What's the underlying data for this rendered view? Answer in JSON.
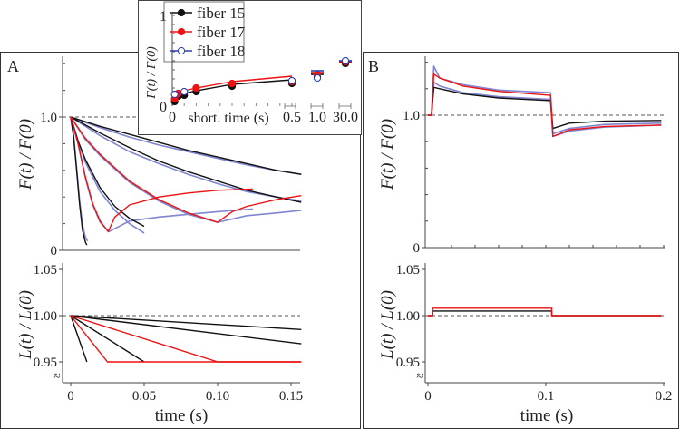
{
  "panels": {
    "a": "A",
    "b": "B"
  },
  "axes": {
    "f_label": "F(t) / F(0)",
    "l_label": "L(t) / L(0)",
    "time_label": "time (s)",
    "inset_x_label": "short. time (s)"
  },
  "colors": {
    "black": "#111111",
    "red": "#ee1111",
    "blue_trace": "#7f86d0",
    "blue_marker": "#2c3fb0",
    "dashed": "#555555"
  },
  "chart_data": [
    {
      "id": "A_force",
      "type": "line",
      "ylabel": "F(t) / F(0)",
      "xlim": [
        0,
        0.157
      ],
      "ylim": [
        0,
        1.45
      ],
      "yticks": [
        {
          "v": 0,
          "label": "0"
        },
        {
          "v": 1.0,
          "label": "1.0"
        }
      ],
      "reference_line": 1.0,
      "series": [
        {
          "color": "blue",
          "points": [
            [
              0,
              1
            ],
            [
              0.02,
              0.92
            ],
            [
              0.04,
              0.85
            ],
            [
              0.06,
              0.79
            ],
            [
              0.08,
              0.74
            ],
            [
              0.1,
              0.69
            ],
            [
              0.12,
              0.64
            ],
            [
              0.14,
              0.6
            ],
            [
              0.157,
              0.57
            ]
          ]
        },
        {
          "color": "blue",
          "points": [
            [
              0,
              1
            ],
            [
              0.02,
              0.86
            ],
            [
              0.04,
              0.74
            ],
            [
              0.06,
              0.65
            ],
            [
              0.08,
              0.57
            ],
            [
              0.1,
              0.5
            ],
            [
              0.12,
              0.44
            ],
            [
              0.14,
              0.4
            ],
            [
              0.157,
              0.37
            ]
          ]
        },
        {
          "color": "blue",
          "points": [
            [
              0,
              1
            ],
            [
              0.01,
              0.83
            ],
            [
              0.02,
              0.71
            ],
            [
              0.04,
              0.51
            ],
            [
              0.06,
              0.37
            ],
            [
              0.08,
              0.27
            ],
            [
              0.1,
              0.21
            ],
            [
              0.12,
              0.26
            ],
            [
              0.14,
              0.28
            ],
            [
              0.157,
              0.3
            ]
          ]
        },
        {
          "color": "blue",
          "points": [
            [
              0,
              1
            ],
            [
              0.005,
              0.82
            ],
            [
              0.01,
              0.66
            ],
            [
              0.02,
              0.44
            ],
            [
              0.03,
              0.3
            ],
            [
              0.04,
              0.2
            ],
            [
              0.05,
              0.13
            ]
          ]
        },
        {
          "color": "blue",
          "points": [
            [
              0,
              1
            ],
            [
              0.005,
              0.8
            ],
            [
              0.01,
              0.54
            ],
            [
              0.015,
              0.34
            ],
            [
              0.02,
              0.21
            ],
            [
              0.026,
              0.14
            ],
            [
              0.04,
              0.22
            ],
            [
              0.06,
              0.25
            ],
            [
              0.08,
              0.27
            ],
            [
              0.1,
              0.29
            ],
            [
              0.124,
              0.31
            ]
          ]
        },
        {
          "color": "blue",
          "points": [
            [
              0,
              1
            ],
            [
              0.002,
              0.86
            ],
            [
              0.004,
              0.62
            ],
            [
              0.006,
              0.38
            ],
            [
              0.008,
              0.19
            ],
            [
              0.01,
              0.1
            ],
            [
              0.0115,
              0.07
            ]
          ]
        },
        {
          "color": "black",
          "points": [
            [
              0,
              1
            ],
            [
              0.02,
              0.93
            ],
            [
              0.04,
              0.87
            ],
            [
              0.06,
              0.81
            ],
            [
              0.08,
              0.75
            ],
            [
              0.1,
              0.7
            ],
            [
              0.12,
              0.65
            ],
            [
              0.14,
              0.6
            ],
            [
              0.157,
              0.57
            ]
          ]
        },
        {
          "color": "black",
          "points": [
            [
              0,
              1
            ],
            [
              0.02,
              0.88
            ],
            [
              0.04,
              0.77
            ],
            [
              0.06,
              0.67
            ],
            [
              0.08,
              0.59
            ],
            [
              0.1,
              0.52
            ],
            [
              0.12,
              0.45
            ],
            [
              0.14,
              0.4
            ],
            [
              0.157,
              0.36
            ]
          ]
        },
        {
          "color": "black",
          "points": [
            [
              0,
              1
            ],
            [
              0.005,
              0.82
            ],
            [
              0.01,
              0.68
            ],
            [
              0.02,
              0.47
            ],
            [
              0.03,
              0.33
            ],
            [
              0.04,
              0.24
            ],
            [
              0.05,
              0.18
            ]
          ]
        },
        {
          "color": "black",
          "points": [
            [
              0,
              1
            ],
            [
              0.002,
              0.85
            ],
            [
              0.004,
              0.6
            ],
            [
              0.006,
              0.35
            ],
            [
              0.008,
              0.15
            ],
            [
              0.01,
              0.06
            ],
            [
              0.011,
              0.04
            ]
          ]
        },
        {
          "color": "red",
          "points": [
            [
              0,
              1
            ],
            [
              0.005,
              0.8
            ],
            [
              0.01,
              0.55
            ],
            [
              0.015,
              0.35
            ],
            [
              0.02,
              0.22
            ],
            [
              0.0255,
              0.14
            ],
            [
              0.03,
              0.25
            ],
            [
              0.04,
              0.34
            ],
            [
              0.06,
              0.4
            ],
            [
              0.08,
              0.43
            ],
            [
              0.1,
              0.45
            ],
            [
              0.124,
              0.46
            ]
          ]
        },
        {
          "color": "red",
          "points": [
            [
              0,
              1
            ],
            [
              0.01,
              0.84
            ],
            [
              0.02,
              0.72
            ],
            [
              0.04,
              0.52
            ],
            [
              0.06,
              0.38
            ],
            [
              0.08,
              0.28
            ],
            [
              0.1,
              0.21
            ],
            [
              0.11,
              0.29
            ],
            [
              0.12,
              0.33
            ],
            [
              0.14,
              0.38
            ],
            [
              0.157,
              0.41
            ]
          ]
        }
      ]
    },
    {
      "id": "A_length",
      "type": "line",
      "ylabel": "L(t) / L(0)",
      "xlabel": "time (s)",
      "xlim": [
        0,
        0.157
      ],
      "ylim": [
        0.93,
        1.05
      ],
      "xticks": [
        {
          "v": 0,
          "label": "0"
        },
        {
          "v": 0.05,
          "label": "0.05"
        },
        {
          "v": 0.1,
          "label": "0.10"
        },
        {
          "v": 0.15,
          "label": "0.15"
        }
      ],
      "yticks": [
        {
          "v": 0.95,
          "label": "0.95"
        },
        {
          "v": 1.0,
          "label": "1.00"
        },
        {
          "v": 1.05,
          "label": "1.05"
        }
      ],
      "axis_break": true,
      "reference_line": 1.0,
      "series": [
        {
          "color": "black",
          "points": [
            [
              0,
              1
            ],
            [
              0.011,
              0.95
            ]
          ]
        },
        {
          "color": "black",
          "points": [
            [
              0,
              1
            ],
            [
              0.05,
              0.95
            ]
          ]
        },
        {
          "color": "black",
          "points": [
            [
              0,
              1
            ],
            [
              0.157,
              0.9695
            ]
          ]
        },
        {
          "color": "black",
          "points": [
            [
              0,
              1
            ],
            [
              0.157,
              0.985
            ]
          ]
        },
        {
          "color": "red",
          "points": [
            [
              0,
              1
            ],
            [
              0.025,
              0.95
            ],
            [
              0.157,
              0.95
            ]
          ]
        },
        {
          "color": "red",
          "points": [
            [
              0,
              1
            ],
            [
              0.1,
              0.95
            ],
            [
              0.157,
              0.95
            ]
          ]
        }
      ]
    },
    {
      "id": "B_force",
      "type": "line",
      "ylabel": "F(t) / F(0)",
      "xlim": [
        0,
        0.2
      ],
      "ylim": [
        0,
        1.45
      ],
      "yticks": [
        {
          "v": 0,
          "label": "0"
        },
        {
          "v": 1.0,
          "label": "1.0"
        }
      ],
      "reference_line": 1.0,
      "series": [
        {
          "color": "blue",
          "points": [
            [
              0,
              1
            ],
            [
              0.003,
              1
            ],
            [
              0.005,
              1.37
            ],
            [
              0.01,
              1.28
            ],
            [
              0.03,
              1.23
            ],
            [
              0.06,
              1.19
            ],
            [
              0.104,
              1.17
            ],
            [
              0.106,
              0.86
            ],
            [
              0.12,
              0.9
            ],
            [
              0.15,
              0.93
            ],
            [
              0.198,
              0.94
            ]
          ]
        },
        {
          "color": "blue",
          "points": [
            [
              0,
              1
            ],
            [
              0.003,
              1
            ],
            [
              0.005,
              1.25
            ],
            [
              0.01,
              1.22
            ],
            [
              0.03,
              1.17
            ],
            [
              0.06,
              1.14
            ],
            [
              0.104,
              1.12
            ],
            [
              0.106,
              0.84
            ],
            [
              0.12,
              0.88
            ],
            [
              0.15,
              0.91
            ],
            [
              0.198,
              0.925
            ]
          ]
        },
        {
          "color": "black",
          "points": [
            [
              0,
              1
            ],
            [
              0.003,
              1
            ],
            [
              0.005,
              1.21
            ],
            [
              0.01,
              1.2
            ],
            [
              0.03,
              1.16
            ],
            [
              0.06,
              1.13
            ],
            [
              0.104,
              1.11
            ],
            [
              0.106,
              0.9
            ],
            [
              0.12,
              0.94
            ],
            [
              0.15,
              0.955
            ],
            [
              0.198,
              0.96
            ]
          ]
        },
        {
          "color": "red",
          "points": [
            [
              0,
              1
            ],
            [
              0.003,
              1
            ],
            [
              0.005,
              1.31
            ],
            [
              0.01,
              1.28
            ],
            [
              0.03,
              1.22
            ],
            [
              0.06,
              1.18
            ],
            [
              0.104,
              1.15
            ],
            [
              0.106,
              0.84
            ],
            [
              0.12,
              0.89
            ],
            [
              0.15,
              0.915
            ],
            [
              0.198,
              0.925
            ]
          ]
        }
      ]
    },
    {
      "id": "B_length",
      "type": "line",
      "ylabel": "L(t) / L(0)",
      "xlabel": "time (s)",
      "xlim": [
        0,
        0.2
      ],
      "ylim": [
        0.93,
        1.05
      ],
      "xticks": [
        {
          "v": 0,
          "label": "0"
        },
        {
          "v": 0.1,
          "label": "0.1"
        },
        {
          "v": 0.2,
          "label": "0.2"
        }
      ],
      "yticks": [
        {
          "v": 0.95,
          "label": "0.95"
        },
        {
          "v": 1.0,
          "label": "1.00"
        },
        {
          "v": 1.05,
          "label": "1.05"
        }
      ],
      "axis_break": true,
      "reference_line": 1.0,
      "series": [
        {
          "color": "black",
          "points": [
            [
              0,
              1
            ],
            [
              0.004,
              1
            ],
            [
              0.004,
              1.005
            ],
            [
              0.105,
              1.005
            ],
            [
              0.105,
              1
            ],
            [
              0.198,
              1
            ]
          ]
        },
        {
          "color": "red",
          "points": [
            [
              0,
              1
            ],
            [
              0.004,
              1
            ],
            [
              0.004,
              1.008
            ],
            [
              0.105,
              1.008
            ],
            [
              0.105,
              1
            ],
            [
              0.198,
              1
            ]
          ]
        }
      ]
    },
    {
      "id": "inset",
      "type": "scatter",
      "ylabel": "F(t) / F(0)",
      "xlabel": "short. time (s)",
      "ylim": [
        0,
        1
      ],
      "xticks": [
        {
          "v": 0,
          "label": "0"
        },
        {
          "v": 0.5,
          "label": "0.5"
        },
        {
          "v": 1.0,
          "label": "1.0"
        },
        {
          "v": 30.0,
          "label": "30.0"
        }
      ],
      "yticks": [
        {
          "v": 0,
          "label": "0"
        },
        {
          "v": 1,
          "label": "1"
        }
      ],
      "legend": "top-left",
      "series": [
        {
          "name": "fiber 15",
          "color": "black",
          "marker": "filled",
          "points": [
            [
              0.01,
              0.05
            ],
            [
              0.025,
              0.11
            ],
            [
              0.05,
              0.12
            ],
            [
              0.1,
              0.16
            ],
            [
              0.25,
              0.22
            ],
            [
              0.5,
              0.25
            ],
            [
              1.0,
              0.32
            ],
            [
              30.0,
              0.47
            ]
          ],
          "fit": [
            [
              0,
              0.1
            ],
            [
              0.05,
              0.14
            ],
            [
              0.1,
              0.17
            ],
            [
              0.25,
              0.24
            ],
            [
              0.5,
              0.29
            ]
          ],
          "fit_1s": 0.35,
          "fit_30s": 0.48
        },
        {
          "name": "fiber 17",
          "color": "red",
          "marker": "filled",
          "points": [
            [
              0.01,
              0.08
            ],
            [
              0.025,
              0.14
            ],
            [
              0.1,
              0.2
            ],
            [
              0.25,
              0.25
            ],
            [
              0.5,
              0.27
            ],
            [
              1.0,
              0.35
            ],
            [
              30.0,
              0.49
            ]
          ],
          "fit": [
            [
              0,
              0.12
            ],
            [
              0.05,
              0.17
            ],
            [
              0.1,
              0.2
            ],
            [
              0.25,
              0.27
            ],
            [
              0.5,
              0.33
            ]
          ],
          "fit_1s": 0.37,
          "fit_30s": 0.49
        },
        {
          "name": "fiber 18",
          "color": "blue",
          "marker": "open",
          "points": [
            [
              0.01,
              0.13
            ],
            [
              0.05,
              0.16
            ],
            [
              0.5,
              0.28
            ],
            [
              1.0,
              0.31
            ],
            [
              30.0,
              0.5
            ]
          ],
          "fit": [],
          "fit_1s": 0.39,
          "fit_30s": 0.5
        }
      ]
    }
  ]
}
